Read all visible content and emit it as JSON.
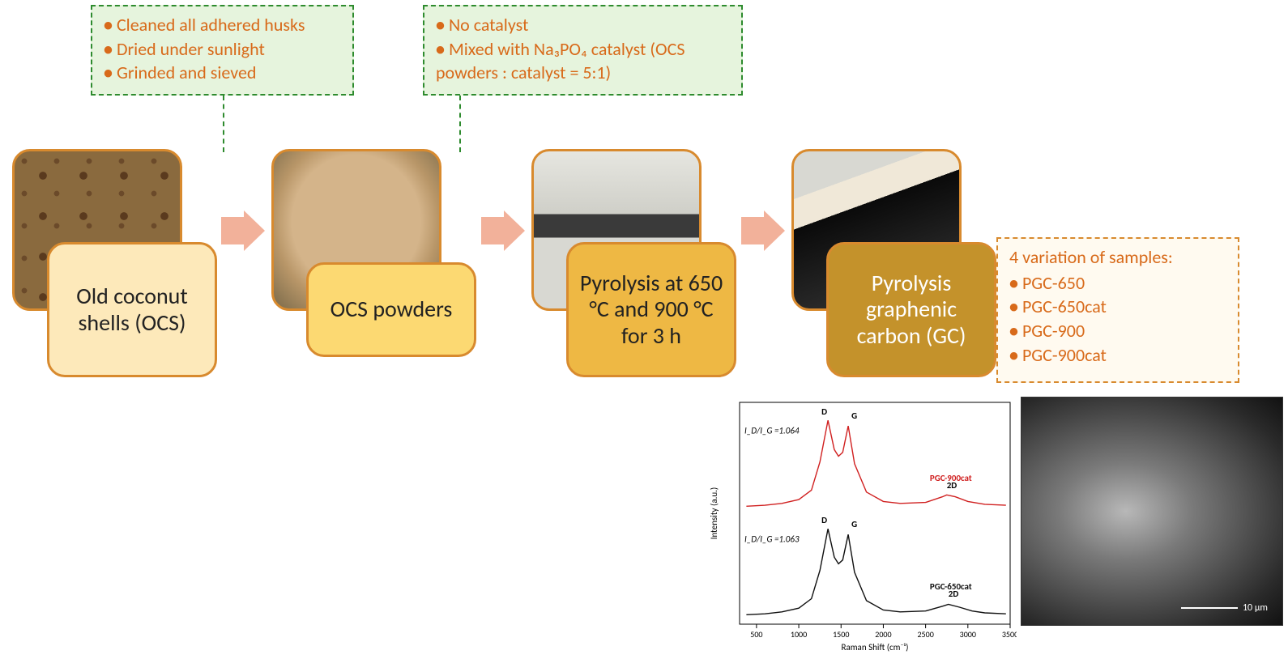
{
  "annotations": {
    "proc1": {
      "items": [
        "Cleaned all adhered husks",
        "Dried under sunlight",
        "Grinded and sieved"
      ],
      "border_color": "#2e8b2e",
      "text_color": "#d86a1a",
      "bg_color": "rgba(200,230,180,0.45)"
    },
    "proc2": {
      "items": [
        "No catalyst",
        "Mixed with Na₃PO₄ catalyst (OCS powders : catalyst = 5:1)"
      ],
      "border_color": "#2e8b2e",
      "text_color": "#d86a1a",
      "bg_color": "rgba(200,230,180,0.45)"
    },
    "outputs": {
      "header": "4 variation of samples:",
      "items": [
        "PGC-650",
        "PGC-650cat",
        "PGC-900",
        "PGC-900cat"
      ],
      "border_color": "#d88a2e",
      "text_color": "#d86a1a",
      "bg_color": "rgba(255,245,225,0.5)"
    }
  },
  "stages": {
    "s1": {
      "label": "Old coconut shells (OCS)",
      "label_bg": "#fde9ba"
    },
    "s2": {
      "label": "OCS powders",
      "label_bg": "#fcd972"
    },
    "s3": {
      "label": "Pyrolysis at 650 °C and 900 °C for 3 h",
      "label_bg": "#eeb844"
    },
    "s4": {
      "label": "Pyrolysis graphenic carbon (GC)",
      "label_bg": "#c4922b"
    }
  },
  "arrow_color": "#f2b19a",
  "raman_chart": {
    "type": "line",
    "xlabel": "Raman Shift (cm⁻¹)",
    "ylabel": "Intensity (a.u.)",
    "xlim": [
      300,
      3500
    ],
    "xticks": [
      500,
      1000,
      1500,
      2000,
      2500,
      3000,
      3500
    ],
    "background_color": "#ffffff",
    "axis_color": "#000000",
    "series": [
      {
        "name": "PGC-900cat",
        "color": "#d02020",
        "ratio_label": "I_D/I_G =1.064",
        "y_offset": 1.15,
        "peak_labels": {
          "D": 1345,
          "G": 1585,
          "2D": 2750
        },
        "points": [
          [
            380,
            0.05
          ],
          [
            600,
            0.06
          ],
          [
            800,
            0.08
          ],
          [
            1000,
            0.12
          ],
          [
            1150,
            0.22
          ],
          [
            1250,
            0.52
          ],
          [
            1345,
            0.96
          ],
          [
            1420,
            0.65
          ],
          [
            1470,
            0.58
          ],
          [
            1520,
            0.62
          ],
          [
            1585,
            0.9
          ],
          [
            1660,
            0.5
          ],
          [
            1800,
            0.2
          ],
          [
            2000,
            0.1
          ],
          [
            2200,
            0.08
          ],
          [
            2500,
            0.09
          ],
          [
            2700,
            0.15
          ],
          [
            2750,
            0.17
          ],
          [
            2850,
            0.15
          ],
          [
            3000,
            0.1
          ],
          [
            3200,
            0.07
          ],
          [
            3450,
            0.06
          ]
        ]
      },
      {
        "name": "PGC-650cat",
        "color": "#101010",
        "ratio_label": "I_D/I_G =1.063",
        "y_offset": 0.0,
        "peak_labels": {
          "D": 1345,
          "G": 1585,
          "2D": 2770
        },
        "points": [
          [
            380,
            0.05
          ],
          [
            600,
            0.06
          ],
          [
            800,
            0.08
          ],
          [
            1000,
            0.12
          ],
          [
            1150,
            0.22
          ],
          [
            1250,
            0.52
          ],
          [
            1345,
            0.96
          ],
          [
            1420,
            0.66
          ],
          [
            1470,
            0.59
          ],
          [
            1520,
            0.63
          ],
          [
            1585,
            0.9
          ],
          [
            1660,
            0.5
          ],
          [
            1800,
            0.2
          ],
          [
            2000,
            0.1
          ],
          [
            2200,
            0.08
          ],
          [
            2500,
            0.09
          ],
          [
            2700,
            0.14
          ],
          [
            2770,
            0.16
          ],
          [
            2900,
            0.13
          ],
          [
            3050,
            0.09
          ],
          [
            3200,
            0.07
          ],
          [
            3450,
            0.06
          ]
        ]
      }
    ],
    "label_fontsize": 11,
    "tick_fontsize": 10
  },
  "sem": {
    "scale_label": "10 µm"
  }
}
